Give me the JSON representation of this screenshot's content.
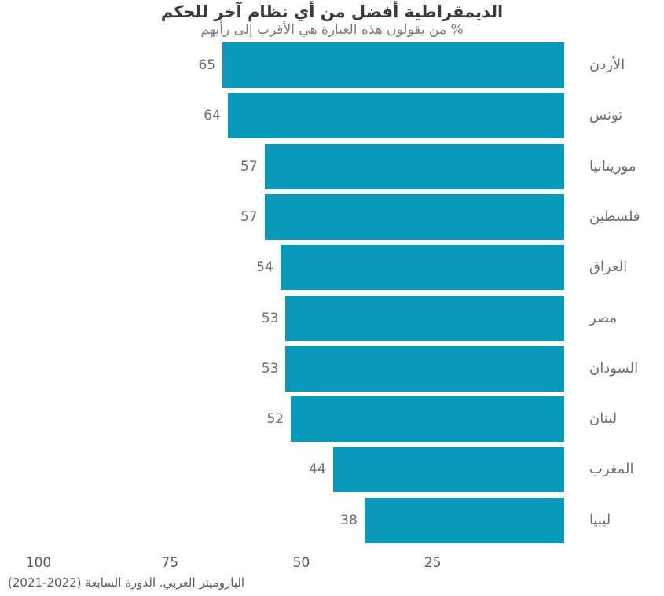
{
  "chart_data": {
    "type": "bar",
    "orientation": "horizontal",
    "direction": "rtl",
    "title": "الديمقراطية أفضل من أي نظام آخر للحكم",
    "subtitle": "% من يقولون هذه العبارة هي الأقرب إلى رأيهم",
    "categories": [
      "الأردن",
      "تونس",
      "موريتانيا",
      "فلسطين",
      "العراق",
      "مصر",
      "السودان",
      "لبنان",
      "المغرب",
      "ليبيا"
    ],
    "values": [
      65,
      64,
      57,
      57,
      54,
      53,
      53,
      52,
      44,
      38
    ],
    "axis_ticks": [
      100,
      75,
      50,
      25
    ],
    "xlim": [
      0,
      107
    ],
    "xlabel": "",
    "ylabel": "",
    "grid": false,
    "legend": false,
    "value_labels_shown": true,
    "bar_color": "#0999ba",
    "source": "الباروميتر العربي. الدورة السابعة (2022-2021)"
  }
}
